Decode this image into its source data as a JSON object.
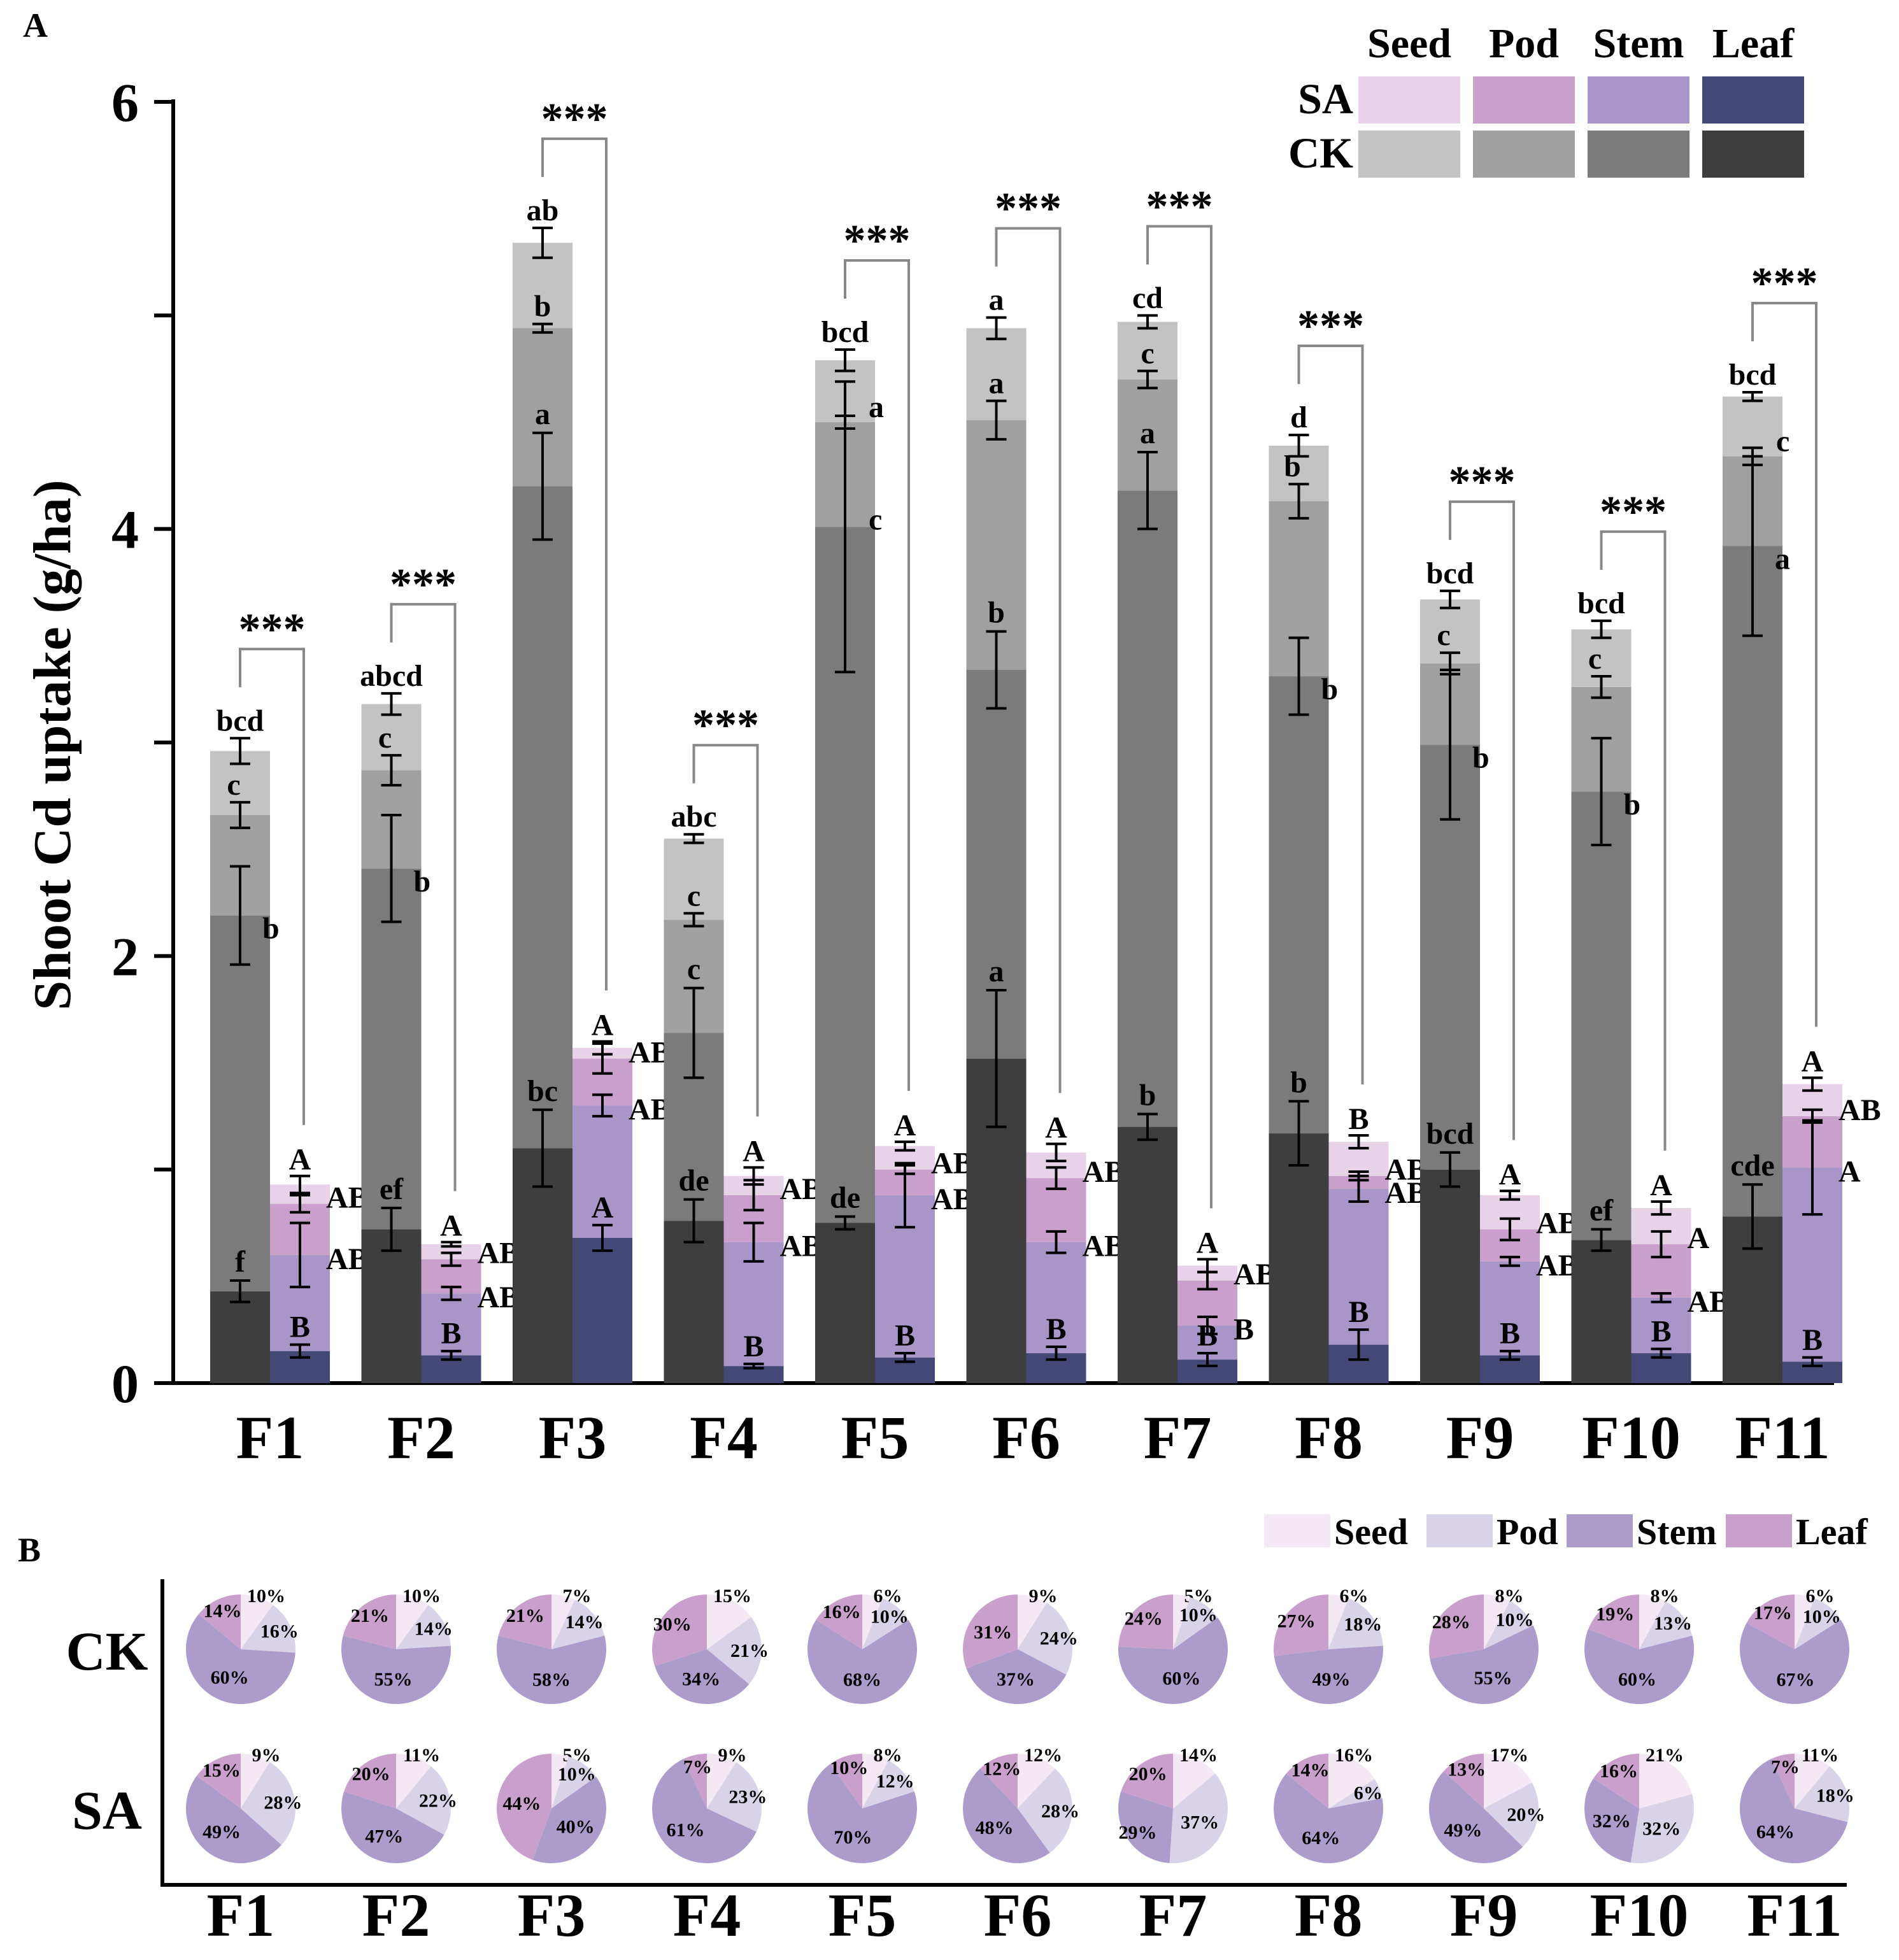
{
  "chart_data": [
    {
      "panel": "A",
      "type": "bar",
      "subtype": "stacked",
      "ylabel": "Shoot Cd uptake (g/ha)",
      "ylim": [
        0,
        6
      ],
      "yticks": [
        "0",
        "2",
        "4",
        "6"
      ],
      "categories": [
        "F1",
        "F2",
        "F3",
        "F4",
        "F5",
        "F6",
        "F7",
        "F8",
        "F9",
        "F10",
        "F11"
      ],
      "significance": "***",
      "legend": {
        "columns": [
          "Seed",
          "Pod",
          "Stem",
          "Leaf"
        ],
        "rows": [
          "SA",
          "CK"
        ],
        "colors": {
          "SA": [
            "#e8d2e8",
            "#c9a0cb",
            "#a896c8",
            "#454876"
          ],
          "CK": [
            "#c3c3c3",
            "#a0a0a0",
            "#7b7b7b",
            "#3e3e3e"
          ]
        }
      },
      "stack_order_bottom_to_top": [
        "Leaf",
        "Stem",
        "Pod",
        "Seed"
      ],
      "series": [
        {
          "group": "CK",
          "name": "Leaf",
          "values": [
            0.43,
            0.72,
            1.1,
            0.76,
            0.75,
            1.52,
            1.2,
            1.17,
            1.0,
            0.67,
            0.78
          ],
          "errors": [
            0.05,
            0.1,
            0.18,
            0.1,
            0.03,
            0.32,
            0.06,
            0.15,
            0.08,
            0.05,
            0.15
          ],
          "labels": [
            "f",
            "ef",
            "bc",
            "de",
            "de",
            "a",
            "b",
            "b",
            "bcd",
            "ef",
            "cde"
          ]
        },
        {
          "group": "CK",
          "name": "Stem",
          "values": [
            1.76,
            1.69,
            3.1,
            0.88,
            3.26,
            1.82,
            2.98,
            2.14,
            1.99,
            2.1,
            3.14
          ],
          "errors": [
            0.23,
            0.25,
            0.25,
            0.21,
            0.68,
            0.18,
            0.18,
            0.18,
            0.35,
            0.25,
            0.42
          ],
          "labels": [
            "b",
            "b",
            "a",
            "c",
            "c",
            "b",
            "a",
            "b",
            "b",
            "b",
            "a"
          ]
        },
        {
          "group": "CK",
          "name": "Pod",
          "values": [
            0.47,
            0.46,
            0.74,
            0.53,
            0.49,
            1.17,
            0.52,
            0.82,
            0.38,
            0.49,
            0.42
          ],
          "errors": [
            0.06,
            0.07,
            0.02,
            0.03,
            0.03,
            0.09,
            0.04,
            0.08,
            0.05,
            0.05,
            0.04
          ],
          "labels": [
            "c",
            "c",
            "b",
            "c",
            "a",
            "a",
            "c",
            "b",
            "c",
            "c",
            "c"
          ]
        },
        {
          "group": "CK",
          "name": "Seed",
          "values": [
            0.3,
            0.31,
            0.4,
            0.38,
            0.29,
            0.43,
            0.27,
            0.26,
            0.3,
            0.27,
            0.28
          ],
          "errors": [
            0.06,
            0.05,
            0.07,
            0.02,
            0.05,
            0.05,
            0.03,
            0.05,
            0.04,
            0.04,
            0.02
          ],
          "labels": [
            "bcd",
            "abcd",
            "ab",
            "abc",
            "bcd",
            "a",
            "cd",
            "d",
            "bcd",
            "bcd",
            "bcd"
          ]
        },
        {
          "group": "SA",
          "name": "Leaf",
          "values": [
            0.15,
            0.13,
            0.68,
            0.08,
            0.12,
            0.14,
            0.11,
            0.18,
            0.13,
            0.14,
            0.1
          ],
          "errors": [
            0.03,
            0.02,
            0.06,
            0.01,
            0.02,
            0.03,
            0.03,
            0.07,
            0.02,
            0.02,
            0.02
          ],
          "labels": [
            "B",
            "B",
            "A",
            "B",
            "B",
            "B",
            "B",
            "B",
            "B",
            "B",
            "B"
          ]
        },
        {
          "group": "SA",
          "name": "Stem",
          "values": [
            0.45,
            0.29,
            0.62,
            0.58,
            0.76,
            0.52,
            0.16,
            0.73,
            0.44,
            0.26,
            0.91
          ],
          "errors": [
            0.15,
            0.03,
            0.05,
            0.09,
            0.15,
            0.05,
            0.04,
            0.06,
            0.02,
            0.02,
            0.22
          ],
          "labels": [
            "AB",
            "AB",
            "AB",
            "AB",
            "AB",
            "AB",
            "B",
            "AB",
            "AB",
            "AB",
            "A"
          ]
        },
        {
          "group": "SA",
          "name": "Pod",
          "values": [
            0.24,
            0.16,
            0.22,
            0.22,
            0.12,
            0.3,
            0.21,
            0.06,
            0.15,
            0.25,
            0.24
          ],
          "errors": [
            0.04,
            0.03,
            0.07,
            0.07,
            0.02,
            0.05,
            0.04,
            0.02,
            0.05,
            0.06,
            0.03
          ],
          "labels": [
            "AB",
            "AB",
            "AB",
            "AB",
            "AB",
            "AB",
            "AB",
            "AB",
            "AB",
            "A",
            "AB"
          ]
        },
        {
          "group": "SA",
          "name": "Seed",
          "values": [
            0.09,
            0.07,
            0.05,
            0.09,
            0.11,
            0.12,
            0.07,
            0.16,
            0.16,
            0.17,
            0.15
          ],
          "errors": [
            0.04,
            0.01,
            0.03,
            0.04,
            0.02,
            0.04,
            0.03,
            0.03,
            0.02,
            0.03,
            0.03
          ],
          "labels": [
            "A",
            "A",
            "A",
            "A",
            "A",
            "A",
            "A",
            "B",
            "A",
            "A",
            "A"
          ]
        }
      ]
    },
    {
      "panel": "B",
      "type": "pie",
      "legend": [
        "Seed",
        "Pod",
        "Stem",
        "Leaf"
      ],
      "legend_colors": [
        "#f3e8f3",
        "#d9d3ea",
        "#ab9ccb",
        "#c9a0cb"
      ],
      "rows": [
        "CK",
        "SA"
      ],
      "categories": [
        "F1",
        "F2",
        "F3",
        "F4",
        "F5",
        "F6",
        "F7",
        "F8",
        "F9",
        "F10",
        "F11"
      ],
      "slice_order": [
        "Seed",
        "Pod",
        "Stem",
        "Leaf"
      ],
      "CK": [
        {
          "values": [
            10,
            16,
            60,
            14
          ],
          "labels": [
            "10%",
            "16%",
            "60%",
            "14%"
          ]
        },
        {
          "values": [
            10,
            14,
            55,
            21
          ],
          "labels": [
            "10%",
            "14%",
            "55%",
            "21%"
          ]
        },
        {
          "values": [
            7,
            14,
            58,
            21
          ],
          "labels": [
            "7%",
            "14%",
            "58%",
            "21%"
          ]
        },
        {
          "values": [
            15,
            21,
            34,
            30
          ],
          "labels": [
            "15%",
            "21%",
            "34%",
            "30%"
          ]
        },
        {
          "values": [
            6,
            10,
            68,
            16
          ],
          "labels": [
            "6%",
            "10%",
            "68%",
            "16%"
          ]
        },
        {
          "values": [
            9,
            24,
            37,
            31
          ],
          "labels": [
            "9%",
            "24%",
            "37%",
            "31%"
          ]
        },
        {
          "values": [
            5,
            10,
            60,
            24
          ],
          "labels": [
            "5%",
            "10%",
            "60%",
            "24%"
          ]
        },
        {
          "values": [
            6,
            18,
            49,
            27
          ],
          "labels": [
            "6%",
            "18%",
            "49%",
            "27%"
          ]
        },
        {
          "values": [
            8,
            10,
            55,
            28
          ],
          "labels": [
            "8%",
            "10%",
            "55%",
            "28%"
          ]
        },
        {
          "values": [
            8,
            13,
            60,
            19
          ],
          "labels": [
            "8%",
            "13%",
            "60%",
            "19%"
          ]
        },
        {
          "values": [
            6,
            10,
            67,
            17
          ],
          "labels": [
            "6%",
            "10%",
            "67%",
            "17%"
          ]
        }
      ],
      "SA": [
        {
          "values": [
            9,
            28,
            49,
            15
          ],
          "labels": [
            "9%",
            "28%",
            "49%",
            "15%"
          ]
        },
        {
          "values": [
            11,
            22,
            47,
            20
          ],
          "labels": [
            "11%",
            "22%",
            "47%",
            "20%"
          ]
        },
        {
          "values": [
            5,
            10,
            40,
            44
          ],
          "labels": [
            "5%",
            "10%",
            "40%",
            "44%"
          ]
        },
        {
          "values": [
            9,
            23,
            61,
            7
          ],
          "labels": [
            "9%",
            "23%",
            "61%",
            "7%"
          ]
        },
        {
          "values": [
            8,
            12,
            70,
            10
          ],
          "labels": [
            "8%",
            "12%",
            "70%",
            "10%"
          ]
        },
        {
          "values": [
            12,
            28,
            48,
            12
          ],
          "labels": [
            "12%",
            "28%",
            "48%",
            "12%"
          ]
        },
        {
          "values": [
            14,
            37,
            29,
            20
          ],
          "labels": [
            "14%",
            "37%",
            "29%",
            "20%"
          ]
        },
        {
          "values": [
            16,
            6,
            64,
            14
          ],
          "labels": [
            "16%",
            "6%",
            "64%",
            "14%"
          ]
        },
        {
          "values": [
            17,
            20,
            49,
            13
          ],
          "labels": [
            "17%",
            "20%",
            "49%",
            "13%"
          ]
        },
        {
          "values": [
            21,
            32,
            32,
            16
          ],
          "labels": [
            "21%",
            "32%",
            "32%",
            "16%"
          ]
        },
        {
          "values": [
            11,
            18,
            64,
            7
          ],
          "labels": [
            "11%",
            "18%",
            "64%",
            "7%"
          ]
        }
      ]
    }
  ]
}
